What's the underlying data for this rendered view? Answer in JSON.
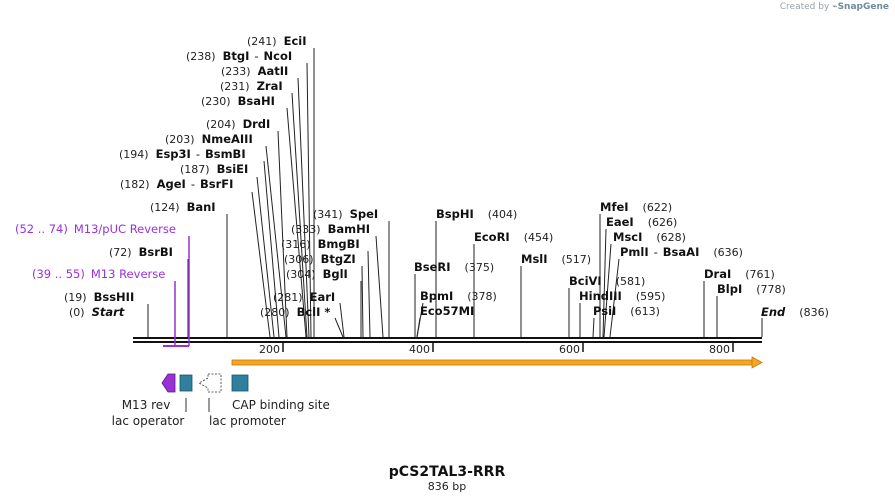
{
  "credit": {
    "prefix": "Created by",
    "brand": "SnapGene"
  },
  "plasmid": {
    "name": "pCS2TAL3-RRR",
    "size": "836 bp"
  },
  "axis": {
    "length_bp": 836,
    "ticks": [
      "200",
      "400",
      "600",
      "800"
    ]
  },
  "sites": [
    {
      "pos": "(0)",
      "name": "Start",
      "italic": true,
      "bp": 0
    },
    {
      "pos": "(19)",
      "name": "BssHII",
      "bp": 19
    },
    {
      "pos": "(72)",
      "name": "BsrBI",
      "bp": 72
    },
    {
      "pos": "(124)",
      "name": "BanI",
      "bp": 124
    },
    {
      "pos": "(182)",
      "name": "AgeI",
      "name2": "BsrFI",
      "bp": 182
    },
    {
      "pos": "(187)",
      "name": "BsiEI",
      "bp": 187
    },
    {
      "pos": "(194)",
      "name": "Esp3I",
      "name2": "BsmBI",
      "bp": 194
    },
    {
      "pos": "(203)",
      "name": "NmeAIII",
      "bp": 203
    },
    {
      "pos": "(204)",
      "name": "DrdI",
      "bp": 204
    },
    {
      "pos": "(230)",
      "name": "BsaHI",
      "bp": 230
    },
    {
      "pos": "(231)",
      "name": "ZraI",
      "bp": 231
    },
    {
      "pos": "(233)",
      "name": "AatII",
      "bp": 233
    },
    {
      "pos": "(238)",
      "name": "BtgI",
      "name2": "NcoI",
      "bp": 238
    },
    {
      "pos": "(241)",
      "name": "EciI",
      "bp": 241
    },
    {
      "pos": "(280)",
      "name": "BclI *",
      "bp": 280
    },
    {
      "pos": "(281)",
      "name": "EarI",
      "bp": 281
    },
    {
      "pos": "(304)",
      "name": "BglI",
      "bp": 304
    },
    {
      "pos": "(306)",
      "name": "BtgZI",
      "bp": 306
    },
    {
      "pos": "(316)",
      "name": "BmgBI",
      "bp": 316
    },
    {
      "pos": "(333)",
      "name": "BamHI",
      "bp": 333
    },
    {
      "pos": "(341)",
      "name": "SpeI",
      "bp": 341
    },
    {
      "pos": "(375)",
      "name": "BseRI",
      "bp": 375
    },
    {
      "pos": "(378)",
      "name": "BpmI",
      "bp": 378
    },
    {
      "pos": "",
      "name": "Eco57MI",
      "bp": 378
    },
    {
      "pos": "(404)",
      "name": "BspHI",
      "bp": 404
    },
    {
      "pos": "(454)",
      "name": "EcoRI",
      "bp": 454
    },
    {
      "pos": "(517)",
      "name": "MslI",
      "bp": 517
    },
    {
      "pos": "(581)",
      "name": "BciVI",
      "bp": 581
    },
    {
      "pos": "(595)",
      "name": "HindIII",
      "bp": 595
    },
    {
      "pos": "(613)",
      "name": "PsiI",
      "bp": 613
    },
    {
      "pos": "(622)",
      "name": "MfeI",
      "bp": 622
    },
    {
      "pos": "(626)",
      "name": "EaeI",
      "bp": 626
    },
    {
      "pos": "(628)",
      "name": "MscI",
      "bp": 628
    },
    {
      "pos": "(636)",
      "name": "PmlI",
      "name2": "BsaAI",
      "bp": 636
    },
    {
      "pos": "(761)",
      "name": "DraI",
      "bp": 761
    },
    {
      "pos": "(778)",
      "name": "BlpI",
      "bp": 778
    },
    {
      "pos": "(836)",
      "name": "End",
      "italic": true,
      "bp": 836
    }
  ],
  "primers": [
    {
      "range": "(52 .. 74)",
      "name": "M13/pUC Reverse"
    },
    {
      "range": "(39 .. 55)",
      "name": "M13 Reverse"
    }
  ],
  "features": [
    {
      "label": "M13 rev",
      "color": "#9a31d6"
    },
    {
      "label": "lac operator",
      "color": "#2f7f9e"
    },
    {
      "label": "lac promoter",
      "color": "#ffffff"
    },
    {
      "label": "CAP binding site",
      "color": "#2f7f9e"
    }
  ],
  "orf_color": "#f5a623"
}
